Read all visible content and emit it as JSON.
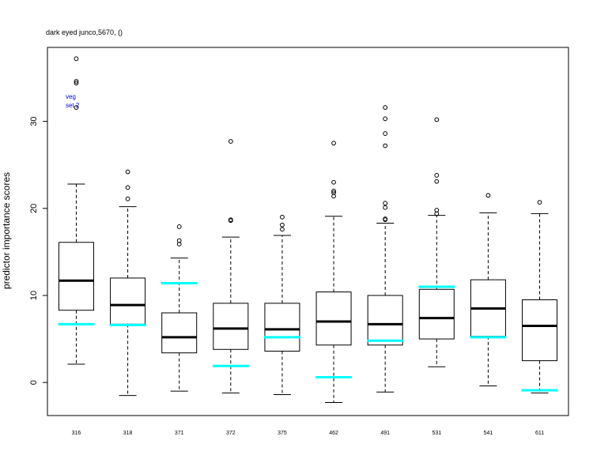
{
  "chart_data": {
    "type": "boxplot",
    "title": "dark eyed junco,5670, ()",
    "xlabel": "",
    "ylabel": "predictor importance scores",
    "legend_lines": [
      "veg",
      "set 2"
    ],
    "legend_color": "#0000ff",
    "reference_color": "#00ffff",
    "ylim": [
      -3.8,
      38.5
    ],
    "yticks": [
      0,
      10,
      20,
      30
    ],
    "categories": [
      "316",
      "318",
      "371",
      "372",
      "375",
      "462",
      "491",
      "531",
      "541",
      "611"
    ],
    "boxes": [
      {
        "whisker_low": 2.1,
        "q1": 8.3,
        "median": 11.7,
        "q3": 16.1,
        "whisker_high": 22.8,
        "outliers": [
          31.6,
          34.4,
          34.6,
          37.2
        ]
      },
      {
        "whisker_low": -1.5,
        "q1": 6.7,
        "median": 8.9,
        "q3": 12.0,
        "whisker_high": 20.2,
        "outliers": [
          21.1,
          22.4,
          24.2
        ]
      },
      {
        "whisker_low": -1.0,
        "q1": 3.4,
        "median": 5.2,
        "q3": 8.0,
        "whisker_high": 14.3,
        "outliers": [
          15.9,
          16.3,
          17.9
        ]
      },
      {
        "whisker_low": -1.2,
        "q1": 3.8,
        "median": 6.2,
        "q3": 9.1,
        "whisker_high": 16.7,
        "outliers": [
          18.6,
          18.7,
          27.7
        ]
      },
      {
        "whisker_low": -1.4,
        "q1": 3.6,
        "median": 6.1,
        "q3": 9.1,
        "whisker_high": 16.9,
        "outliers": [
          17.6,
          18.1,
          19.0
        ]
      },
      {
        "whisker_low": -2.3,
        "q1": 4.3,
        "median": 7.0,
        "q3": 10.4,
        "whisker_high": 19.1,
        "outliers": [
          21.4,
          21.8,
          22.0,
          23.0,
          27.5
        ]
      },
      {
        "whisker_low": -1.1,
        "q1": 4.3,
        "median": 6.7,
        "q3": 10.0,
        "whisker_high": 18.3,
        "outliers": [
          18.7,
          18.8,
          20.1,
          20.6,
          27.2,
          28.6,
          30.3,
          31.6
        ]
      },
      {
        "whisker_low": 1.8,
        "q1": 5.0,
        "median": 7.4,
        "q3": 10.7,
        "whisker_high": 19.2,
        "outliers": [
          19.4,
          19.8,
          23.1,
          23.8,
          30.2
        ]
      },
      {
        "whisker_low": -0.4,
        "q1": 5.3,
        "median": 8.5,
        "q3": 11.8,
        "whisker_high": 19.5,
        "outliers": [
          21.5
        ]
      },
      {
        "whisker_low": -1.2,
        "q1": 2.5,
        "median": 6.5,
        "q3": 9.5,
        "whisker_high": 19.4,
        "outliers": [
          20.7
        ]
      }
    ],
    "reference_values": [
      6.7,
      6.6,
      11.4,
      1.9,
      5.2,
      0.6,
      4.8,
      11.0,
      5.2,
      -0.9
    ],
    "grid": false
  }
}
